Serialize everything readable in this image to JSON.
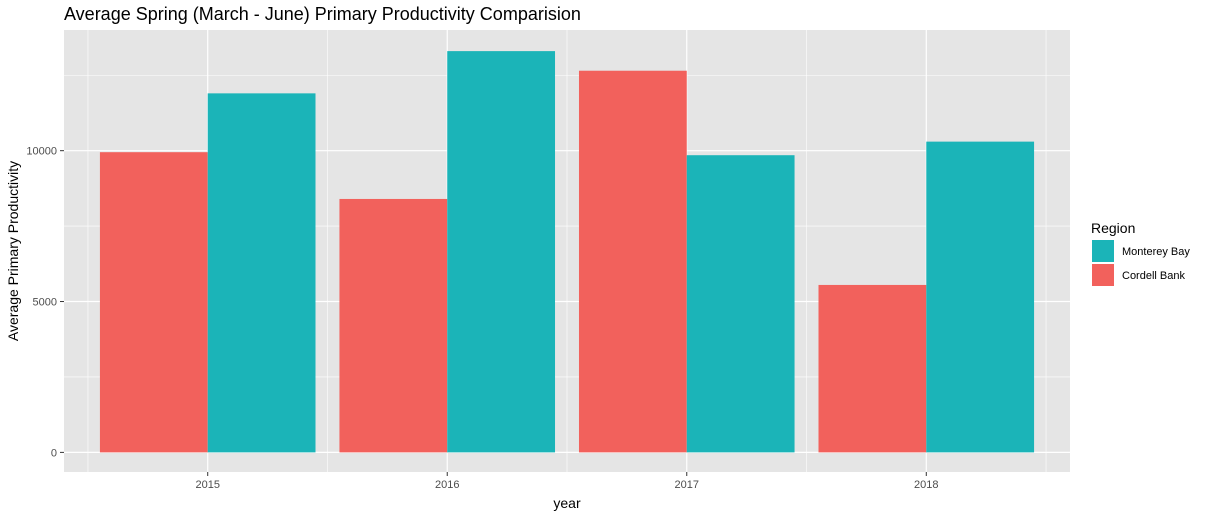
{
  "chart_data": {
    "type": "bar",
    "title": "Average Spring (March - June) Primary Productivity Comparision",
    "xlabel": "year",
    "ylabel": "Average Primary Productivity",
    "categories": [
      "2015",
      "2016",
      "2017",
      "2018"
    ],
    "series": [
      {
        "name": "Cordell Bank",
        "color": "#F2615C",
        "values": [
          9950,
          8400,
          12650,
          5550
        ]
      },
      {
        "name": "Monterey Bay",
        "color": "#1BB4B8",
        "values": [
          11900,
          13300,
          9850,
          10300
        ]
      }
    ],
    "yticks": [
      0,
      5000,
      10000
    ],
    "ylim": [
      -650,
      14000
    ],
    "grid": true,
    "panel_background": "#E5E5E5",
    "grid_color": "#FFFFFF",
    "legend": {
      "title": "Region",
      "placement": "right",
      "entries": [
        {
          "label": "Monterey Bay",
          "color": "#1BB4B8"
        },
        {
          "label": "Cordell Bank",
          "color": "#F2615C"
        }
      ]
    }
  }
}
